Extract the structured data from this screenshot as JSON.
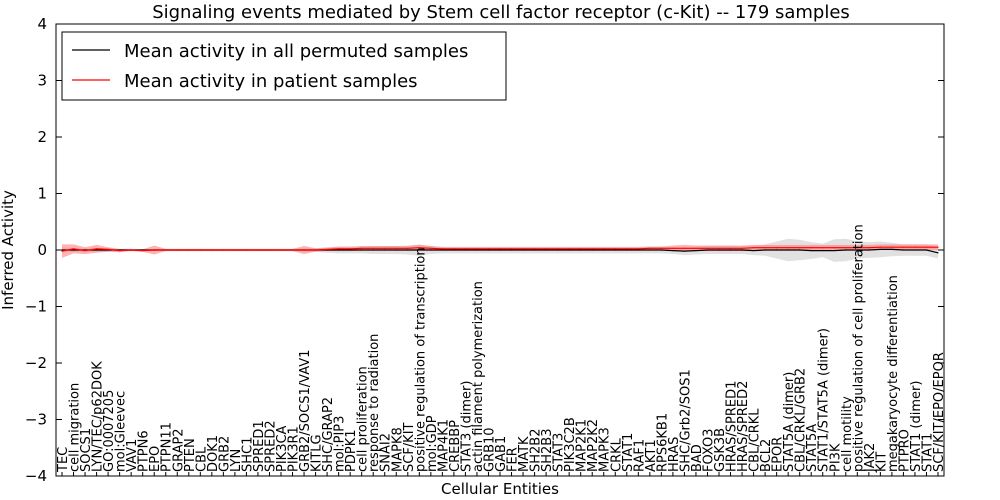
{
  "chart_data": {
    "type": "line",
    "title": "Signaling events mediated by Stem cell factor receptor (c-Kit) -- 179 samples",
    "xlabel": "Cellular Entities",
    "ylabel": "Inferred Activity",
    "ylim": [
      -4,
      4
    ],
    "yticks": [
      -4,
      -3,
      -2,
      -1,
      0,
      1,
      2,
      3,
      4
    ],
    "grid": false,
    "legend_position": "top-left",
    "categories": [
      "TEC",
      "cell migration",
      "SOCS1",
      "LYN/TEC/p62DOK",
      "GO:0007205",
      "mol:Gleevec",
      "VAV1",
      "PTPN6",
      "EPO",
      "PTPN11",
      "GRAP2",
      "PTEN",
      "CBL",
      "DOK1",
      "GRB2",
      "LYN",
      "SHC1",
      "SPRED1",
      "SPRED2",
      "PIK3CA",
      "PIK3R1",
      "GRB2/SOCS1/VAV1",
      "KITLG",
      "SHC/GRAP2",
      "mol:PIP3",
      "PDPK1",
      "cell proliferation",
      "response to radiation",
      "SNAI2",
      "MAPK8",
      "SCF/KIT",
      "positive regulation of transcription",
      "mol:GDP",
      "MAP4K1",
      "CREBBP",
      "STAT3 (dimer)",
      "actin filament polymerization",
      "GRB10",
      "GAB1",
      "FER",
      "MATK",
      "SH2B2",
      "SH2B3",
      "STAT3",
      "PIK3C2B",
      "MAP2K1",
      "MAP2K2",
      "MAPK3",
      "CRKL",
      "STAT1",
      "RAF1",
      "AKT1",
      "RPS6KB1",
      "HRAS",
      "SHC/Grb2/SOS1",
      "BAD",
      "FOXO3",
      "GSK3B",
      "HRAS/SPRED1",
      "HRAS/SPRED2",
      "CBL/CRKL",
      "BCL2",
      "EPOR",
      "STAT5A (dimer)",
      "CBL/CRKL/GRB2",
      "STAT5A",
      "STAT1/STAT5A (dimer)",
      "PI3K",
      "cell motility",
      "positive regulation of cell proliferation",
      "JAK2",
      "KIT",
      "megakaryocyte differentiation",
      "PTPRO",
      "STAT1 (dimer)",
      "STAT1",
      "SCF/KIT/EPO/EPOR"
    ],
    "series": [
      {
        "name": "Mean activity in all permuted samples",
        "color": "#000000",
        "values": [
          0,
          0,
          0,
          0,
          0,
          0,
          0,
          0,
          0,
          0,
          0,
          0,
          0,
          0,
          0,
          0,
          0,
          0,
          0,
          0,
          0,
          0,
          0,
          0,
          0,
          0,
          0,
          0,
          0,
          0,
          0,
          0,
          0,
          0,
          0,
          0,
          0,
          0,
          0,
          0,
          0,
          0,
          0,
          0,
          0,
          0,
          0,
          0,
          0,
          0,
          0,
          0,
          0,
          -0.01,
          -0.02,
          -0.01,
          0,
          0,
          0,
          0,
          -0.01,
          0,
          0,
          0,
          0,
          -0.01,
          -0.01,
          -0.01,
          0,
          0,
          0,
          0.01,
          0.01,
          0,
          0,
          0,
          -0.05
        ],
        "band": [
          0.05,
          0.03,
          0.03,
          0.03,
          0.03,
          0.02,
          0.02,
          0.02,
          0.02,
          0.02,
          0.02,
          0.02,
          0.02,
          0.02,
          0.02,
          0.02,
          0.02,
          0.02,
          0.02,
          0.02,
          0.02,
          0.03,
          0.03,
          0.05,
          0.06,
          0.06,
          0.06,
          0.07,
          0.07,
          0.07,
          0.08,
          0.1,
          0.07,
          0.06,
          0.06,
          0.06,
          0.06,
          0.06,
          0.06,
          0.06,
          0.06,
          0.06,
          0.06,
          0.06,
          0.06,
          0.06,
          0.06,
          0.06,
          0.06,
          0.06,
          0.06,
          0.06,
          0.06,
          0.06,
          0.07,
          0.07,
          0.07,
          0.07,
          0.07,
          0.07,
          0.08,
          0.1,
          0.15,
          0.2,
          0.18,
          0.15,
          0.12,
          0.2,
          0.2,
          0.15,
          0.14,
          0.14,
          0.12,
          0.1,
          0.1,
          0.1,
          0.1
        ],
        "band_color": "#c8c8c8"
      },
      {
        "name": "Mean activity in patient samples",
        "color": "#ff0000",
        "values": [
          -0.02,
          0.02,
          -0.01,
          0.02,
          0.01,
          -0.01,
          0,
          -0.01,
          0,
          0,
          0,
          0,
          0,
          0,
          0,
          0,
          0,
          0,
          0,
          0,
          0,
          0,
          0,
          0.01,
          0.02,
          0.02,
          0.03,
          0.03,
          0.03,
          0.03,
          0.03,
          0.04,
          0.03,
          0.02,
          0.02,
          0.02,
          0.02,
          0.02,
          0.02,
          0.02,
          0.02,
          0.02,
          0.02,
          0.02,
          0.02,
          0.02,
          0.02,
          0.02,
          0.02,
          0.02,
          0.02,
          0.03,
          0.03,
          0.03,
          0.03,
          0.03,
          0.03,
          0.03,
          0.03,
          0.03,
          0.04,
          0.04,
          0.04,
          0.04,
          0.04,
          0.04,
          0.04,
          0.04,
          0.04,
          0.04,
          0.04,
          0.05,
          0.05,
          0.05,
          0.05,
          0.05,
          0.05
        ],
        "band": [
          0.12,
          0.08,
          0.06,
          0.07,
          0.04,
          0.03,
          0.02,
          0.02,
          0.08,
          0.02,
          0.02,
          0.02,
          0.02,
          0.02,
          0.02,
          0.02,
          0.02,
          0.02,
          0.02,
          0.02,
          0.02,
          0.07,
          0.03,
          0.03,
          0.04,
          0.04,
          0.04,
          0.04,
          0.04,
          0.04,
          0.04,
          0.05,
          0.04,
          0.03,
          0.03,
          0.03,
          0.03,
          0.03,
          0.03,
          0.03,
          0.03,
          0.03,
          0.03,
          0.03,
          0.03,
          0.03,
          0.03,
          0.03,
          0.03,
          0.03,
          0.03,
          0.03,
          0.03,
          0.05,
          0.06,
          0.05,
          0.05,
          0.05,
          0.05,
          0.05,
          0.05,
          0.05,
          0.05,
          0.05,
          0.05,
          0.05,
          0.05,
          0.05,
          0.05,
          0.05,
          0.05,
          0.05,
          0.05,
          0.05,
          0.05,
          0.05,
          0.05
        ],
        "band_color": "#ff8080"
      }
    ]
  }
}
